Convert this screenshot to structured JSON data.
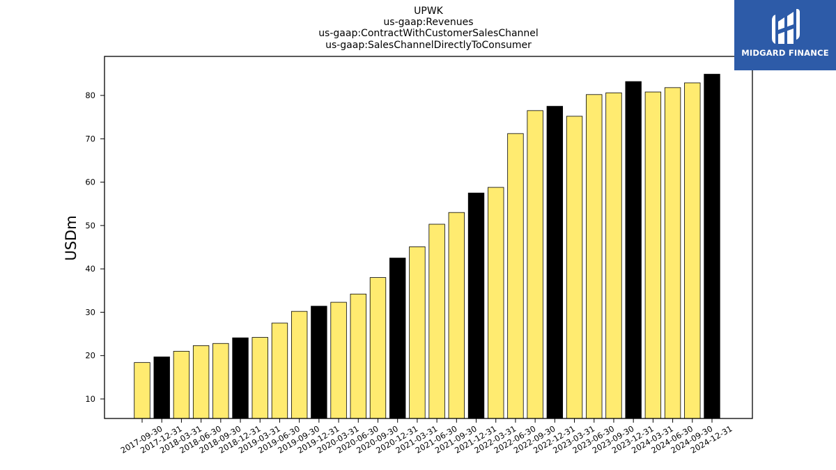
{
  "chart_data": {
    "type": "bar",
    "title_lines": [
      "UPWK",
      "us-gaap:Revenues",
      "us-gaap:ContractWithCustomerSalesChannel",
      "us-gaap:SalesChannelDirectlyToConsumer"
    ],
    "xlabel": "",
    "ylabel": "USDm",
    "ylim": [
      5.5,
      89
    ],
    "yticks": [
      10,
      20,
      30,
      40,
      50,
      60,
      70,
      80
    ],
    "grid": false,
    "legend": "none",
    "categories": [
      "2017-09-30",
      "2017-12-31",
      "2018-03-31",
      "2018-06-30",
      "2018-09-30",
      "2018-12-31",
      "2019-03-31",
      "2019-06-30",
      "2019-09-30",
      "2019-12-31",
      "2020-03-31",
      "2020-06-30",
      "2020-09-30",
      "2020-12-31",
      "2021-03-31",
      "2021-06-30",
      "2021-09-30",
      "2021-12-31",
      "2022-03-31",
      "2022-06-30",
      "2022-09-30",
      "2022-12-31",
      "2023-03-31",
      "2023-06-30",
      "2023-09-30",
      "2023-12-31",
      "2024-03-31",
      "2024-06-30",
      "2024-09-30",
      "2024-12-31"
    ],
    "values": [
      18.4,
      19.7,
      21.0,
      22.3,
      22.8,
      24.1,
      24.2,
      27.5,
      30.2,
      31.4,
      32.3,
      34.2,
      38.0,
      42.5,
      45.1,
      50.3,
      53.0,
      57.5,
      58.8,
      71.2,
      76.5,
      77.5,
      75.2,
      80.2,
      80.6,
      83.2,
      80.8,
      81.8,
      82.9,
      84.9
    ],
    "bar_colors": {
      "quarter": "#ffeb70",
      "year_end": "#000000",
      "edge": "#000000"
    }
  },
  "logo": {
    "text": "MIDGARD FINANCE",
    "background": "#2d5ba8",
    "foreground": "#ffffff"
  }
}
